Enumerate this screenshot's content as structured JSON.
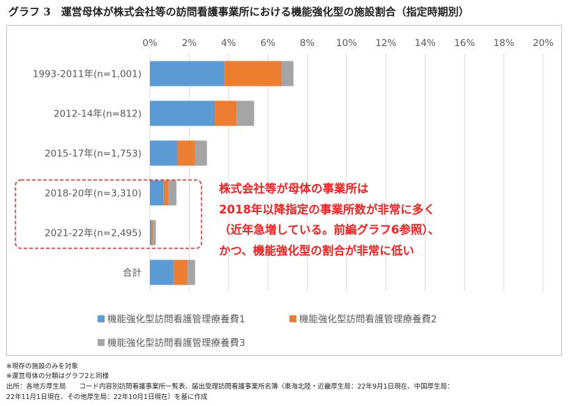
{
  "title": "グラフ 3　運営母体が株式会社等の訪問看護事業所における機能強化型の施設割合（指定時期別）",
  "chart_data": {
    "type": "bar",
    "orientation": "horizontal",
    "stacked": true,
    "categories": [
      "1993-2011年(n=1,001)",
      "2012-14年(n=812)",
      "2015-17年(n=1,753)",
      "2018-20年(n=3,310)",
      "2021-22年(n=2,495)",
      "合計"
    ],
    "series": [
      {
        "name": "機能強化型訪問看護管理療養費1",
        "color": "#5b9bd5",
        "values": [
          3.8,
          3.3,
          1.4,
          0.7,
          0.1,
          1.2
        ]
      },
      {
        "name": "機能強化型訪問看護管理療養費2",
        "color": "#ed7d31",
        "values": [
          2.9,
          1.1,
          0.9,
          0.25,
          0.05,
          0.7
        ]
      },
      {
        "name": "機能強化型訪問看護管理療養費3",
        "color": "#a5a5a5",
        "values": [
          0.6,
          0.9,
          0.6,
          0.4,
          0.15,
          0.4
        ]
      }
    ],
    "xlim": [
      0,
      20
    ],
    "xticks": [
      "0%",
      "2%",
      "4%",
      "6%",
      "8%",
      "10%",
      "12%",
      "14%",
      "16%",
      "18%",
      "20%"
    ],
    "grid": true,
    "legend_position": "bottom"
  },
  "annotation": {
    "lines": [
      "株式会社等が母体の事業所は",
      "2018年以降指定の事業所数が非常に多く",
      "（近年急増している。前編グラフ6参照）、",
      "かつ、機能強化型の割合が非常に低い"
    ],
    "color": "#ff1f1f"
  },
  "notes": [
    "※現存の施設のみを対象",
    "※運営母体の分類はグラフ2と同様",
    "出所：各地方厚生局　　コード内容別訪問看護事業所一覧表、届出受理訪問看護事業所名簿（東海北陸・近畿厚生局：22年9月1日現在、中国厚生局：",
    "22年11月1日現在、その他厚生局：22年10月1日現在）を基に作成"
  ]
}
